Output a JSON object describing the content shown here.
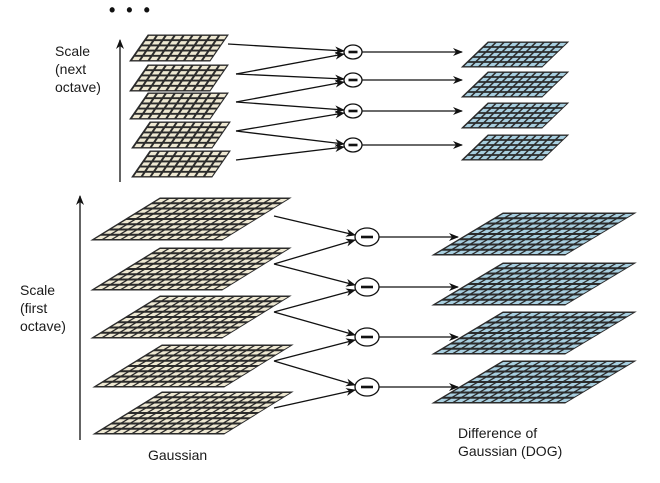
{
  "labels": {
    "ellipsis": "• • •",
    "scale_next_1": "Scale",
    "scale_next_2": "(next",
    "scale_next_3": "octave)",
    "scale_first_1": "Scale",
    "scale_first_2": "(first",
    "scale_first_3": "octave)",
    "gaussian": "Gaussian",
    "dog_1": "Difference of",
    "dog_2": "Gaussian (DOG)"
  },
  "colors": {
    "gaussian_fill": "#eee8d2",
    "dog_fill": "#a8cfe0",
    "grid_line": "#2b2b2b",
    "arrow": "#111111"
  },
  "structure": {
    "octaves": 2,
    "gaussian_levels_per_octave": 5,
    "dog_levels_per_octave": 4,
    "operator": "minus"
  }
}
